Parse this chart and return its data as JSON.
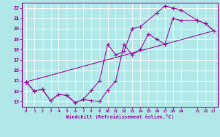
{
  "xlabel": "Windchill (Refroidissement éolien,°C)",
  "bg_color": "#b0e8e8",
  "grid_color": "#ffffff",
  "line_color": "#990099",
  "xlim": [
    -0.5,
    23.5
  ],
  "ylim": [
    12.5,
    22.5
  ],
  "xticks": [
    0,
    1,
    2,
    3,
    4,
    5,
    6,
    7,
    8,
    9,
    10,
    11,
    12,
    13,
    14,
    15,
    16,
    17,
    18,
    19,
    21,
    22,
    23
  ],
  "yticks": [
    13,
    14,
    15,
    16,
    17,
    18,
    19,
    20,
    21,
    22
  ],
  "line1_x": [
    0,
    1,
    2,
    3,
    4,
    5,
    6,
    7,
    8,
    9,
    10,
    11,
    12,
    13,
    14,
    15,
    16,
    17,
    18,
    19,
    21,
    22,
    23
  ],
  "line1_y": [
    14.9,
    14.0,
    14.2,
    13.1,
    13.7,
    13.6,
    12.9,
    13.2,
    13.1,
    13.0,
    14.1,
    15.0,
    18.5,
    17.5,
    18.0,
    19.5,
    19.0,
    18.5,
    21.0,
    20.8,
    20.8,
    20.5,
    19.8
  ],
  "line2_x": [
    0,
    1,
    2,
    3,
    4,
    5,
    6,
    7,
    8,
    9,
    10,
    11,
    12,
    13,
    14,
    16,
    17,
    18,
    19,
    21,
    22,
    23
  ],
  "line2_y": [
    14.9,
    14.0,
    14.2,
    13.1,
    13.7,
    13.6,
    12.9,
    13.2,
    14.1,
    15.0,
    18.5,
    17.5,
    17.8,
    20.0,
    20.2,
    21.5,
    22.2,
    22.0,
    21.8,
    20.8,
    20.5,
    19.8
  ],
  "line3_x": [
    0,
    23
  ],
  "line3_y": [
    14.9,
    19.8
  ]
}
